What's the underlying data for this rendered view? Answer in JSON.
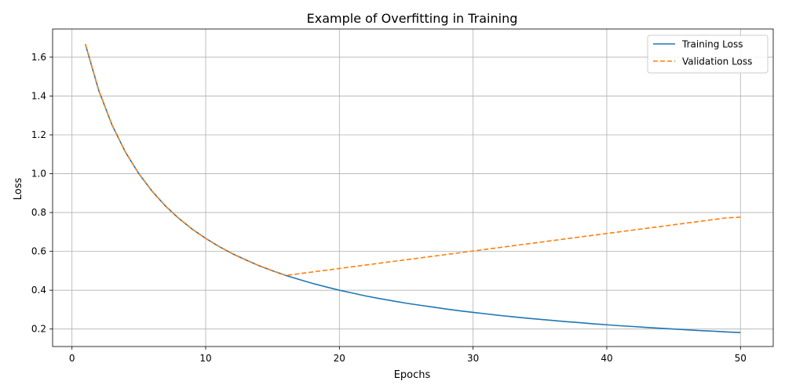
{
  "chart_data": {
    "type": "line",
    "title": "Example of Overfitting in Training",
    "xlabel": "Epochs",
    "ylabel": "Loss",
    "xlim": [
      -1.45,
      52.45
    ],
    "ylim": [
      0.11,
      1.745
    ],
    "xticks": [
      0,
      10,
      20,
      30,
      40,
      50
    ],
    "yticks": [
      0.2,
      0.4,
      0.6,
      0.8,
      1.0,
      1.2,
      1.4,
      1.6
    ],
    "ytick_labels": [
      "0.2",
      "0.4",
      "0.6",
      "0.8",
      "1.0",
      "1.2",
      "1.4",
      "1.6"
    ],
    "grid": true,
    "legend_position": "top-right",
    "x": [
      1,
      2,
      3,
      4,
      5,
      6,
      7,
      8,
      9,
      10,
      11,
      12,
      13,
      14,
      15,
      16,
      17,
      18,
      19,
      20,
      21,
      22,
      23,
      24,
      25,
      26,
      27,
      28,
      29,
      30,
      31,
      32,
      33,
      34,
      35,
      36,
      37,
      38,
      39,
      40,
      41,
      42,
      43,
      44,
      45,
      46,
      47,
      48,
      49,
      50
    ],
    "series": [
      {
        "name": "Training Loss",
        "color": "#1f77b4",
        "style": "solid",
        "values": [
          1.667,
          1.429,
          1.25,
          1.111,
          1.0,
          0.909,
          0.833,
          0.769,
          0.714,
          0.667,
          0.625,
          0.588,
          0.556,
          0.526,
          0.5,
          0.476,
          0.455,
          0.435,
          0.417,
          0.4,
          0.385,
          0.37,
          0.357,
          0.345,
          0.333,
          0.323,
          0.313,
          0.303,
          0.294,
          0.286,
          0.278,
          0.27,
          0.263,
          0.256,
          0.25,
          0.244,
          0.238,
          0.233,
          0.227,
          0.222,
          0.217,
          0.213,
          0.208,
          0.204,
          0.2,
          0.196,
          0.192,
          0.189,
          0.185,
          0.182
        ]
      },
      {
        "name": "Validation Loss",
        "color": "#ff7f0e",
        "style": "dashed",
        "values": [
          1.667,
          1.429,
          1.25,
          1.111,
          1.0,
          0.909,
          0.833,
          0.769,
          0.714,
          0.667,
          0.625,
          0.588,
          0.556,
          0.526,
          0.5,
          0.476,
          0.485,
          0.494,
          0.503,
          0.512,
          0.521,
          0.53,
          0.539,
          0.548,
          0.557,
          0.566,
          0.575,
          0.584,
          0.593,
          0.602,
          0.611,
          0.62,
          0.629,
          0.638,
          0.647,
          0.656,
          0.665,
          0.674,
          0.683,
          0.692,
          0.701,
          0.71,
          0.719,
          0.728,
          0.737,
          0.746,
          0.755,
          0.764,
          0.773,
          0.776
        ]
      }
    ]
  }
}
